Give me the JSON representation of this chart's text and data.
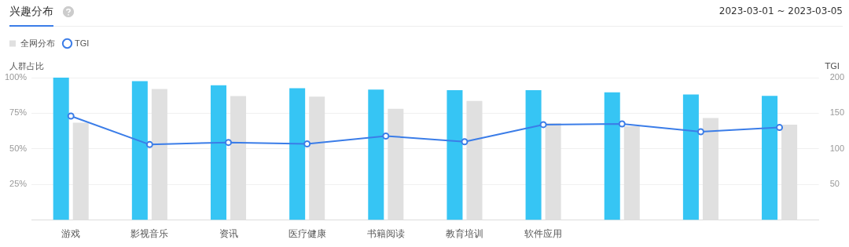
{
  "chart_data": {
    "type": "bar",
    "title": "兴趣分布",
    "subtitle": "2023-03-01 ~ 2023-03-05",
    "ylabel": "人群占比",
    "y2label": "TGI",
    "categories": [
      "游戏",
      "影视音乐",
      "资讯",
      "医疗健康",
      "书籍阅读",
      "教育培训",
      "软件应用",
      null,
      null,
      null
    ],
    "series": [
      {
        "color": "#36c5f4",
        "values": [
          100,
          97.5,
          94.7,
          92.6,
          91.6,
          91.2,
          91.2,
          89.7,
          88.2,
          87.2
        ]
      },
      {
        "name": "全网分布",
        "color": "#e0e0e0",
        "values": [
          68.4,
          92,
          87,
          86.7,
          78.1,
          83.6,
          68,
          65.9,
          71.6,
          67
        ]
      },
      {
        "name": "TGI",
        "type": "line",
        "axis": "y2",
        "color": "#3b7de8",
        "marker": "circle",
        "values": [
          146,
          106,
          109,
          107,
          118,
          110,
          134,
          135,
          124,
          130
        ]
      }
    ],
    "ylim": [
      0,
      100
    ],
    "yticks": [
      {
        "value": 25,
        "label": "25%"
      },
      {
        "value": 50,
        "label": "50%"
      },
      {
        "value": 75,
        "label": "75%"
      },
      {
        "value": 100,
        "label": "100%"
      }
    ],
    "y2lim": [
      0,
      200
    ],
    "y2ticks": [
      50,
      100,
      150,
      200
    ],
    "grid": "y",
    "legend": "top left"
  }
}
